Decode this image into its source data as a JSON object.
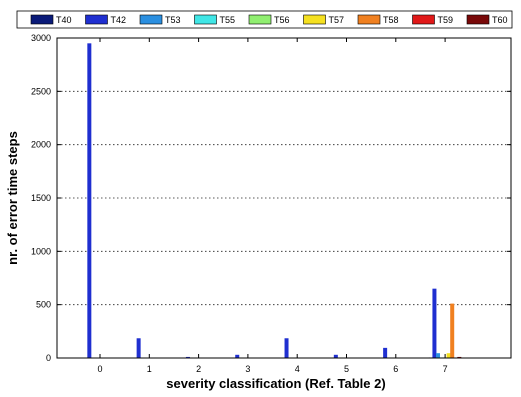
{
  "chart_data": {
    "type": "bar",
    "xlabel": "severity classification (Ref. Table 2)",
    "ylabel": "nr. of error time steps",
    "categories": [
      "0",
      "1",
      "2",
      "3",
      "4",
      "5",
      "6",
      "7"
    ],
    "ylim": [
      0,
      3000
    ],
    "yticks": [
      "0",
      "500",
      "1000",
      "1500",
      "2000",
      "2500",
      "3000"
    ],
    "grid": "horizontal dotted",
    "legend_position": "top",
    "series": [
      {
        "name": "T40",
        "color": "#0a1a78",
        "values": [
          0,
          0,
          0,
          0,
          0,
          0,
          0,
          5
        ]
      },
      {
        "name": "T42",
        "color": "#1f2fd0",
        "values": [
          2950,
          185,
          10,
          30,
          185,
          30,
          95,
          650
        ]
      },
      {
        "name": "T53",
        "color": "#2b8fe0",
        "values": [
          0,
          0,
          0,
          0,
          0,
          0,
          0,
          45
        ]
      },
      {
        "name": "T55",
        "color": "#40e6e6",
        "values": [
          0,
          0,
          0,
          0,
          0,
          0,
          0,
          5
        ]
      },
      {
        "name": "T56",
        "color": "#90ee70",
        "values": [
          0,
          0,
          0,
          0,
          0,
          0,
          0,
          5
        ]
      },
      {
        "name": "T57",
        "color": "#f5e020",
        "values": [
          0,
          0,
          0,
          0,
          0,
          0,
          0,
          45
        ]
      },
      {
        "name": "T58",
        "color": "#f08020",
        "values": [
          0,
          0,
          0,
          0,
          0,
          0,
          0,
          510
        ]
      },
      {
        "name": "T59",
        "color": "#e01818",
        "values": [
          0,
          0,
          0,
          0,
          0,
          0,
          0,
          0
        ]
      },
      {
        "name": "T60",
        "color": "#780808",
        "values": [
          0,
          0,
          0,
          0,
          0,
          0,
          0,
          10
        ]
      }
    ]
  }
}
